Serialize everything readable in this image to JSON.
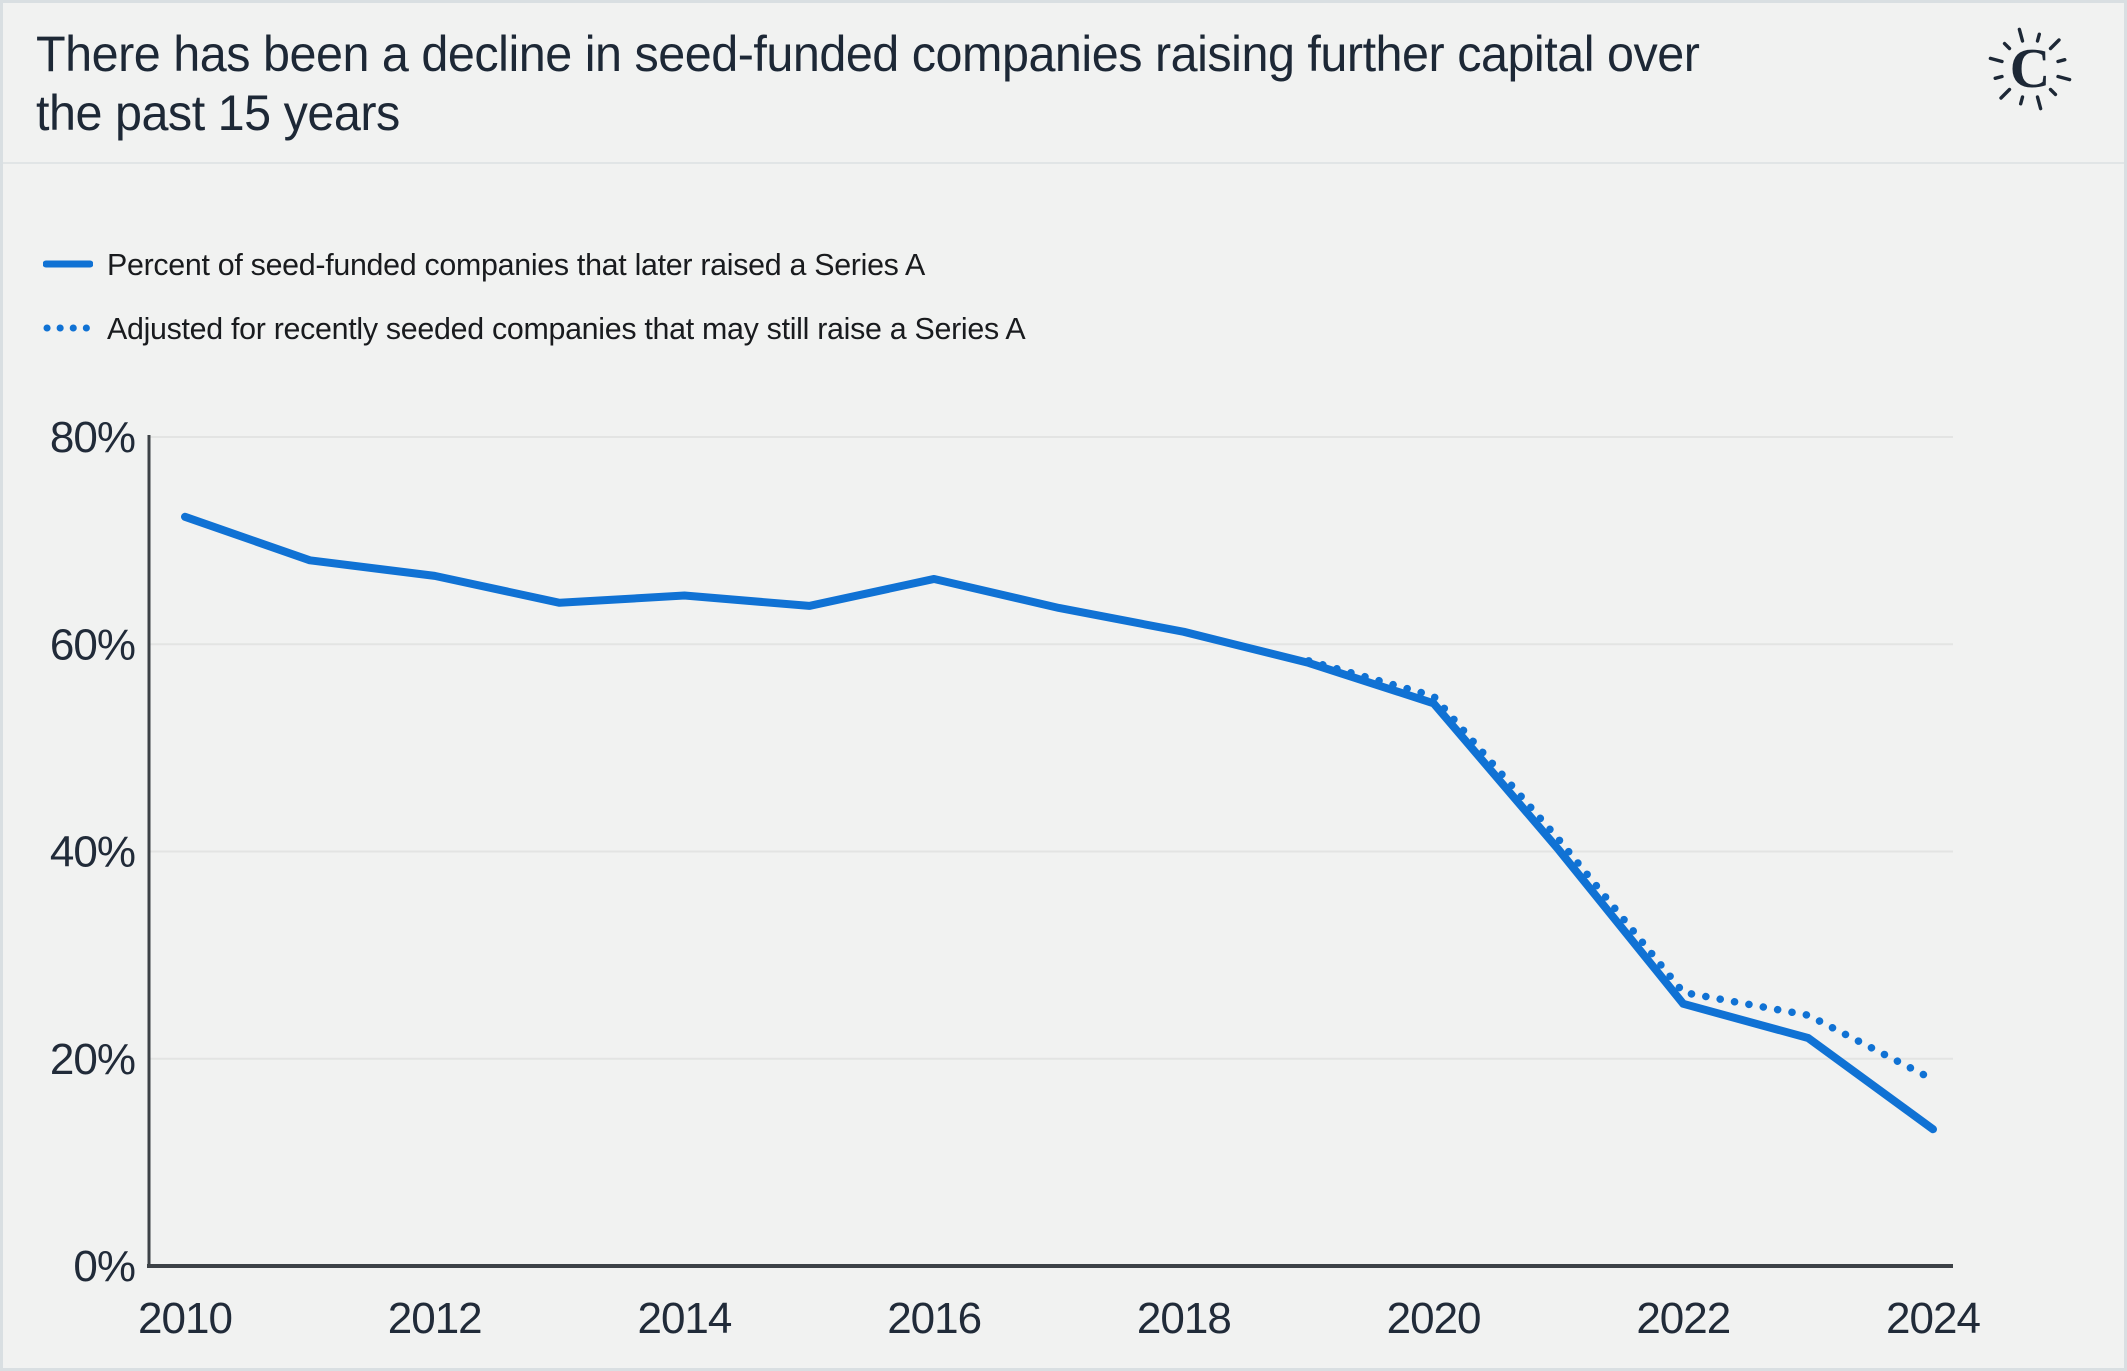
{
  "header": {
    "title": "There has been a decline in seed-funded companies raising further capital over the past 15 years",
    "logo_letter": "C"
  },
  "legend": {
    "items": [
      {
        "label": "Percent of seed-funded companies that later raised a Series A",
        "style": "solid"
      },
      {
        "label": "Adjusted for recently seeded companies that may still raise a Series A",
        "style": "dotted"
      }
    ]
  },
  "colors": {
    "line_blue": "#1072d4",
    "dark_navy": "#1d2836",
    "axis_dark": "#3d4247",
    "gridline": "#e3e4e3",
    "background": "#f1f2f1",
    "legend_text": "#191b1e"
  },
  "chart_data": {
    "type": "line",
    "title": "There has been a decline in seed-funded companies raising further capital over the past 15 years",
    "xlabel": "",
    "ylabel": "",
    "ylim": [
      0,
      80
    ],
    "yticks": [
      0,
      20,
      40,
      60,
      80
    ],
    "ytick_labels": [
      "0%",
      "20%",
      "40%",
      "60%",
      "80%"
    ],
    "xticks": [
      2010,
      2012,
      2014,
      2016,
      2018,
      2020,
      2022,
      2024
    ],
    "x_range": [
      2010,
      2024
    ],
    "grid": true,
    "legend_position": "top-left",
    "series": [
      {
        "name": "Percent of seed-funded companies that later raised a Series A",
        "style": "solid",
        "x": [
          2010,
          2011,
          2012,
          2013,
          2014,
          2015,
          2016,
          2017,
          2018,
          2019,
          2020,
          2021,
          2022,
          2023,
          2024
        ],
        "values": [
          72.3,
          68.1,
          66.6,
          64.0,
          64.7,
          63.7,
          66.3,
          63.5,
          61.2,
          58.2,
          54.3,
          40.2,
          25.3,
          22.0,
          13.2
        ]
      },
      {
        "name": "Adjusted for recently seeded companies that may still raise a Series A",
        "style": "dotted",
        "x": [
          2019,
          2020,
          2021,
          2022,
          2023,
          2024
        ],
        "values": [
          58.4,
          55.0,
          41.2,
          26.4,
          24.2,
          18.0
        ]
      }
    ]
  }
}
